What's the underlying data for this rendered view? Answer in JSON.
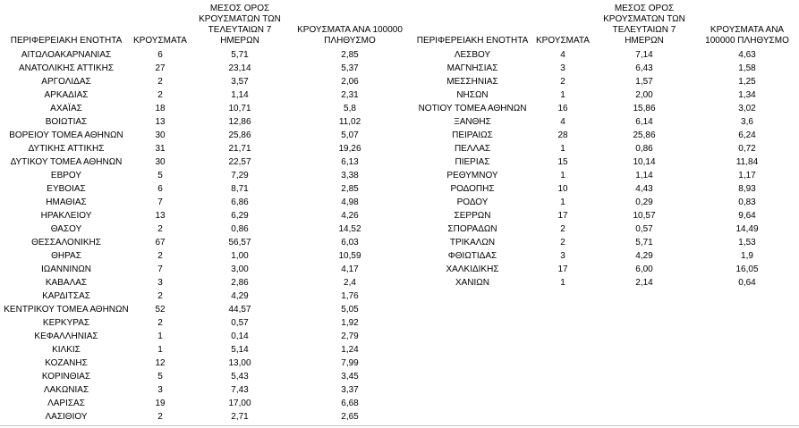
{
  "headers": {
    "region": "ΠΕΡΙΦΕΡΕΙΑΚΗ ΕΝΟΤΗΤΑ",
    "cases": "ΚΡΟΥΣΜΑΤΑ",
    "avg7": "ΜΕΣΟΣ ΟΡΟΣ\nΚΡΟΥΣΜΑΤΩΝ ΤΩΝ\nΤΕΛΕΥΤΑΙΩΝ 7\nΗΜΕΡΩΝ",
    "per100k_left": "ΚΡΟΥΣΜΑΤΑ ΑΝΑ 100000\nΠΛΗΘΥΣΜΟ",
    "per100k_right": "ΚΡΟΥΣΜΑΤΑ ΑΝΑ\n100000 ΠΛΗΘΥΣΜΟ"
  },
  "left_rows": [
    [
      "ΑΙΤΩΛΟΑΚΑΡΝΑΝΙΑΣ",
      "6",
      "5,71",
      "2,85"
    ],
    [
      "ΑΝΑΤΟΛΙΚΗΣ ΑΤΤΙΚΗΣ",
      "27",
      "23,14",
      "5,37"
    ],
    [
      "ΑΡΓΟΛΙΔΑΣ",
      "2",
      "3,57",
      "2,06"
    ],
    [
      "ΑΡΚΑΔΙΑΣ",
      "2",
      "1,14",
      "2,31"
    ],
    [
      "ΑΧΑΪΑΣ",
      "18",
      "10,71",
      "5,8"
    ],
    [
      "ΒΟΙΩΤΙΑΣ",
      "13",
      "12,86",
      "11,02"
    ],
    [
      "ΒΟΡΕΙΟΥ ΤΟΜΕΑ ΑΘΗΝΩΝ",
      "30",
      "25,86",
      "5,07"
    ],
    [
      "ΔΥΤΙΚΗΣ ΑΤΤΙΚΗΣ",
      "31",
      "21,71",
      "19,26"
    ],
    [
      "ΔΥΤΙΚΟΥ ΤΟΜΕΑ ΑΘΗΝΩΝ",
      "30",
      "22,57",
      "6,13"
    ],
    [
      "ΕΒΡΟΥ",
      "5",
      "7,29",
      "3,38"
    ],
    [
      "ΕΥΒΟΙΑΣ",
      "6",
      "8,71",
      "2,85"
    ],
    [
      "ΗΜΑΘΙΑΣ",
      "7",
      "6,86",
      "4,98"
    ],
    [
      "ΗΡΑΚΛΕΙΟΥ",
      "13",
      "6,29",
      "4,26"
    ],
    [
      "ΘΑΣΟΥ",
      "2",
      "0,86",
      "14,52"
    ],
    [
      "ΘΕΣΣΑΛΟΝΙΚΗΣ",
      "67",
      "56,57",
      "6,03"
    ],
    [
      "ΘΗΡΑΣ",
      "2",
      "1,00",
      "10,59"
    ],
    [
      "ΙΩΑΝΝΙΝΩΝ",
      "7",
      "3,00",
      "4,17"
    ],
    [
      "ΚΑΒΑΛΑΣ",
      "3",
      "2,86",
      "2,4"
    ],
    [
      "ΚΑΡΔΙΤΣΑΣ",
      "2",
      "4,29",
      "1,76"
    ],
    [
      "ΚΕΝΤΡΙΚΟΥ ΤΟΜΕΑ ΑΘΗΝΩΝ",
      "52",
      "44,57",
      "5,05"
    ],
    [
      "ΚΕΡΚΥΡΑΣ",
      "2",
      "0,57",
      "1,92"
    ],
    [
      "ΚΕΦΑΛΛΗΝΙΑΣ",
      "1",
      "0,14",
      "2,79"
    ],
    [
      "ΚΙΛΚΙΣ",
      "1",
      "5,14",
      "1,24"
    ],
    [
      "ΚΟΖΑΝΗΣ",
      "12",
      "13,00",
      "7,99"
    ],
    [
      "ΚΟΡΙΝΘΙΑΣ",
      "5",
      "5,43",
      "3,45"
    ],
    [
      "ΛΑΚΩΝΙΑΣ",
      "3",
      "7,43",
      "3,37"
    ],
    [
      "ΛΑΡΙΣΑΣ",
      "19",
      "17,00",
      "6,68"
    ],
    [
      "ΛΑΣΙΘΙΟΥ",
      "2",
      "2,71",
      "2,65"
    ]
  ],
  "right_rows": [
    [
      "ΛΕΣΒΟΥ",
      "4",
      "7,14",
      "4,63"
    ],
    [
      "ΜΑΓΝΗΣΙΑΣ",
      "3",
      "6,43",
      "1,58"
    ],
    [
      "ΜΕΣΣΗΝΙΑΣ",
      "2",
      "1,57",
      "1,25"
    ],
    [
      "ΝΗΣΩΝ",
      "1",
      "2,00",
      "1,34"
    ],
    [
      "ΝΟΤΙΟΥ ΤΟΜΕΑ ΑΘΗΝΩΝ",
      "16",
      "15,86",
      "3,02"
    ],
    [
      "ΞΑΝΘΗΣ",
      "4",
      "6,14",
      "3,6"
    ],
    [
      "ΠΕΙΡΑΙΩΣ",
      "28",
      "25,86",
      "6,24"
    ],
    [
      "ΠΕΛΛΑΣ",
      "1",
      "0,86",
      "0,72"
    ],
    [
      "ΠΙΕΡΙΑΣ",
      "15",
      "10,14",
      "11,84"
    ],
    [
      "ΡΕΘΥΜΝΟΥ",
      "1",
      "1,14",
      "1,17"
    ],
    [
      "ΡΟΔΟΠΗΣ",
      "10",
      "4,43",
      "8,93"
    ],
    [
      "ΡΟΔΟΥ",
      "1",
      "0,29",
      "0,83"
    ],
    [
      "ΣΕΡΡΩΝ",
      "17",
      "10,57",
      "9,64"
    ],
    [
      "ΣΠΟΡΑΔΩΝ",
      "2",
      "0,57",
      "14,49"
    ],
    [
      "ΤΡΙΚΑΛΩΝ",
      "2",
      "5,71",
      "1,53"
    ],
    [
      "ΦΘΙΩΤΙΔΑΣ",
      "3",
      "4,29",
      "1,9"
    ],
    [
      "ΧΑΛΚΙΔΙΚΗΣ",
      "17",
      "6,00",
      "16,05"
    ],
    [
      "ΧΑΝΙΩΝ",
      "1",
      "2,14",
      "0,64"
    ]
  ]
}
